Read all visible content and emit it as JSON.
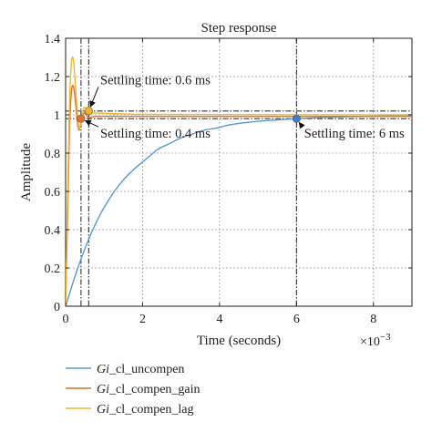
{
  "chart_data": {
    "type": "line",
    "title": "Step response",
    "xlabel": "Time (seconds)",
    "ylabel": "Amplitude",
    "x_exponent_label": "×10",
    "x_exponent_power": "−3",
    "xlim": [
      0,
      0.009
    ],
    "ylim": [
      0,
      1.4
    ],
    "x_ticks": [
      0,
      0.002,
      0.004,
      0.006,
      0.008
    ],
    "x_tick_labels": [
      "0",
      "2",
      "4",
      "6",
      "8"
    ],
    "y_ticks": [
      0,
      0.2,
      0.4,
      0.6,
      0.8,
      1.0,
      1.2,
      1.4
    ],
    "y_tick_labels": [
      "0",
      "0.2",
      "0.4",
      "0.6",
      "0.8",
      "1",
      "1.2",
      "1.4"
    ],
    "grid": true,
    "legend_placement": "below-left",
    "series": [
      {
        "name_prefix": "Gi",
        "name_suffix": "_cl_uncompen",
        "color": "#5B9BD5",
        "x": [
          0,
          0.0003,
          0.0006,
          0.0009,
          0.0012,
          0.0015,
          0.0018,
          0.0021,
          0.0024,
          0.0027,
          0.003,
          0.0033,
          0.0036,
          0.0039,
          0.0042,
          0.0045,
          0.0048,
          0.0051,
          0.0054,
          0.0057,
          0.006,
          0.0065,
          0.007,
          0.0075,
          0.008,
          0.0085,
          0.009
        ],
        "y": [
          0,
          0.19,
          0.35,
          0.48,
          0.58,
          0.66,
          0.72,
          0.77,
          0.82,
          0.85,
          0.88,
          0.9,
          0.92,
          0.93,
          0.945,
          0.955,
          0.962,
          0.968,
          0.972,
          0.976,
          0.98,
          0.985,
          0.988,
          0.991,
          0.993,
          0.995,
          0.996
        ]
      },
      {
        "name_prefix": "Gi",
        "name_suffix": "_cl_compen_gain",
        "color": "#E2712A",
        "x": [
          0,
          5e-05,
          0.0001,
          0.00015,
          0.0002,
          0.00025,
          0.0003,
          0.00035,
          0.0004,
          0.00045,
          0.0005,
          0.00055,
          0.0006,
          0.0007,
          0.0008,
          0.001,
          0.0015,
          0.002,
          0.003,
          0.005,
          0.009
        ],
        "y": [
          0,
          0.45,
          0.92,
          1.12,
          1.15,
          1.08,
          0.97,
          0.92,
          0.96,
          1.0,
          1.01,
          0.995,
          0.985,
          0.99,
          0.992,
          0.992,
          0.992,
          0.992,
          0.992,
          0.992,
          0.992
        ]
      },
      {
        "name_prefix": "Gi",
        "name_suffix": "_cl_compen_lag",
        "color": "#F2B62E",
        "x": [
          0,
          5e-05,
          0.0001,
          0.00015,
          0.0002,
          0.00025,
          0.0003,
          0.00035,
          0.0004,
          0.00045,
          0.0005,
          0.0006,
          0.0007,
          0.0008,
          0.001,
          0.0015,
          0.002,
          0.003,
          0.005,
          0.009
        ],
        "y": [
          0,
          0.55,
          1.05,
          1.27,
          1.29,
          1.17,
          1.02,
          0.93,
          0.96,
          1.02,
          1.04,
          1.02,
          1.01,
          1.01,
          1.008,
          1.005,
          1.003,
          1.002,
          1.001,
          1.0
        ]
      }
    ],
    "reference_lines": [
      {
        "axis": "y",
        "value": 1.02,
        "style": "dash-dot",
        "color": "#333333"
      },
      {
        "axis": "y",
        "value": 0.98,
        "style": "dash-dot",
        "color": "#333333"
      },
      {
        "axis": "x",
        "value": 0.0004,
        "style": "dash-dot",
        "color": "#333333"
      },
      {
        "axis": "x",
        "value": 0.0006,
        "style": "dash-dot",
        "color": "#333333"
      },
      {
        "axis": "x",
        "value": 0.006,
        "style": "dash-dot",
        "color": "#333333"
      }
    ],
    "markers": [
      {
        "x": 0.0004,
        "y": 0.98,
        "color": "#E2712A"
      },
      {
        "x": 0.0006,
        "y": 1.02,
        "color": "#F2B62E"
      },
      {
        "x": 0.006,
        "y": 0.98,
        "color": "#3F7FC3"
      }
    ],
    "annotations": [
      {
        "text": "Settling time: 0.6 ms",
        "x": 0.0009,
        "y": 1.16,
        "anchor_x": 0.0006,
        "anchor_y": 1.02
      },
      {
        "text": "Settling time: 0.4 ms",
        "x": 0.0009,
        "y": 0.88,
        "anchor_x": 0.0004,
        "anchor_y": 0.98
      },
      {
        "text": "Settling time: 6 ms",
        "x": 0.0062,
        "y": 0.88,
        "anchor_x": 0.006,
        "anchor_y": 0.98
      }
    ]
  }
}
